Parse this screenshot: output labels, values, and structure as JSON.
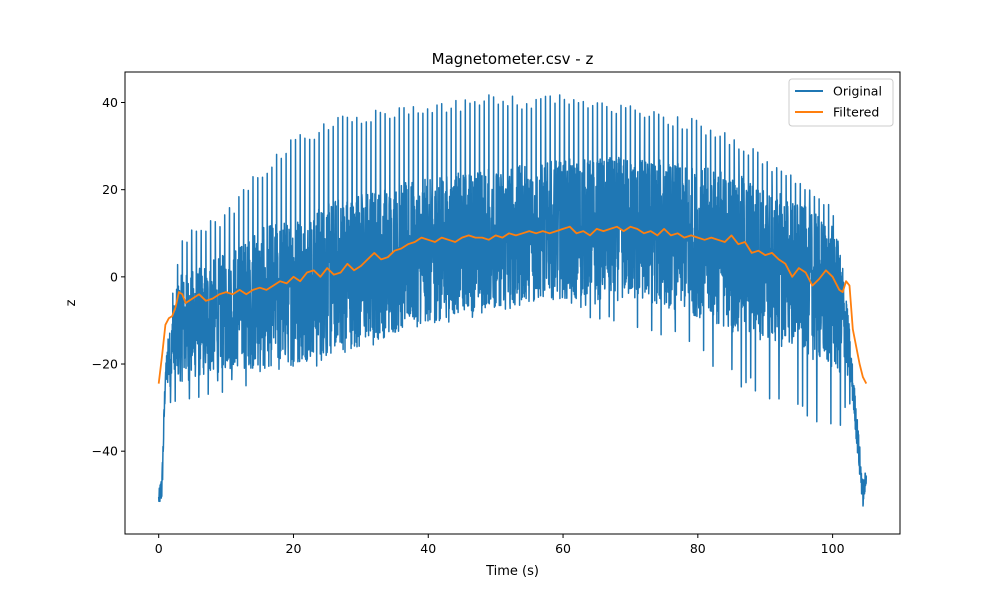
{
  "chart_data": {
    "type": "line",
    "title": "Magnetometer.csv - z",
    "xlabel": "Time (s)",
    "ylabel": "z",
    "xlim": [
      -5,
      110
    ],
    "ylim": [
      -59,
      47
    ],
    "xticks": [
      0,
      20,
      40,
      60,
      80,
      100
    ],
    "yticks": [
      -40,
      -20,
      0,
      20,
      40
    ],
    "ytick_labels": [
      "−40",
      "−20",
      "0",
      "20",
      "40"
    ],
    "grid": false,
    "legend_position": "top-right",
    "series": [
      {
        "name": "Original",
        "color": "#1f77b4",
        "envelope": {
          "x": [
            0,
            0.5,
            1,
            2,
            3,
            5,
            10,
            15,
            20,
            25,
            30,
            35,
            40,
            45,
            50,
            55,
            60,
            65,
            70,
            75,
            80,
            85,
            90,
            95,
            100,
            101,
            102,
            103,
            104,
            104.5,
            105
          ],
          "upper": [
            -49,
            -40,
            -20,
            -5,
            8,
            12,
            15,
            25,
            32,
            36,
            38,
            39,
            40,
            41,
            42,
            41,
            42,
            41,
            40,
            38,
            36,
            33,
            28,
            22,
            16,
            8,
            0,
            -22,
            -35,
            -45,
            -43
          ],
          "lower": [
            -54,
            -52,
            -30,
            -32,
            -30,
            -28,
            -27,
            -25,
            -22,
            -20,
            -18,
            -15,
            -12,
            -10,
            -9,
            -8,
            -8,
            -10,
            -12,
            -15,
            -18,
            -25,
            -28,
            -32,
            -36,
            -38,
            -30,
            -35,
            -47,
            -54,
            -50
          ],
          "center": [
            -51,
            -48,
            -22,
            -17,
            -12,
            -11,
            -8,
            -5,
            -3,
            0,
            2,
            4,
            6,
            8,
            9,
            10,
            11,
            11,
            11,
            10,
            8,
            6,
            3,
            0,
            -5,
            -8,
            -12,
            -25,
            -42,
            -50,
            -46
          ],
          "low_spikes": [
            -35,
            -36,
            -25,
            -23,
            -20,
            -17,
            -14,
            -13,
            -12,
            -11,
            -14,
            -16,
            -20,
            -24,
            -28,
            -33,
            -35,
            -30,
            -38
          ]
        }
      },
      {
        "name": "Filtered",
        "color": "#ff7f0e",
        "x": [
          0,
          0.5,
          1,
          1.5,
          2,
          2.5,
          3,
          3.5,
          4,
          5,
          6,
          7,
          8,
          9,
          10,
          11,
          12,
          13,
          14,
          15,
          16,
          17,
          18,
          19,
          20,
          21,
          22,
          23,
          24,
          25,
          26,
          27,
          28,
          29,
          30,
          31,
          32,
          33,
          34,
          35,
          36,
          37,
          38,
          39,
          40,
          41,
          42,
          43,
          44,
          45,
          46,
          47,
          48,
          49,
          50,
          51,
          52,
          53,
          54,
          55,
          56,
          57,
          58,
          59,
          60,
          61,
          62,
          63,
          64,
          65,
          66,
          67,
          68,
          69,
          70,
          71,
          72,
          73,
          74,
          75,
          76,
          77,
          78,
          79,
          80,
          81,
          82,
          83,
          84,
          85,
          86,
          87,
          88,
          89,
          90,
          91,
          92,
          93,
          94,
          95,
          96,
          97,
          98,
          99,
          100,
          101,
          101.5,
          102,
          102.5,
          103,
          103.5,
          104,
          104.5,
          105
        ],
        "values": [
          -24.5,
          -18,
          -11,
          -9.5,
          -9,
          -7,
          -3.5,
          -4,
          -6,
          -5,
          -4,
          -5.5,
          -5,
          -4,
          -3.5,
          -4,
          -3,
          -4,
          -3,
          -2.5,
          -3,
          -2,
          -1,
          -1.5,
          0,
          -1,
          1,
          1.5,
          0,
          2,
          0.5,
          1,
          3,
          1.5,
          2.5,
          4,
          5.5,
          4,
          4.5,
          6,
          6.5,
          7.5,
          8,
          9,
          8.5,
          8,
          9,
          8.5,
          8,
          9,
          9.5,
          9,
          9,
          8.5,
          9.5,
          9,
          10,
          9.5,
          10,
          10.5,
          10,
          10.5,
          10,
          10.5,
          11,
          11.5,
          10,
          10.5,
          9.5,
          11,
          10.5,
          11,
          11.5,
          10.5,
          11.5,
          11,
          10,
          10.5,
          9.5,
          11,
          9.5,
          10,
          9,
          9.5,
          9,
          8.5,
          9,
          8.5,
          8,
          9.5,
          7.5,
          8,
          5.5,
          6,
          5,
          5.5,
          4,
          3,
          0,
          2,
          1,
          -2,
          -0.5,
          1.5,
          0,
          -3,
          -3.5,
          -1,
          -2,
          -12,
          -16,
          -20,
          -23,
          -24.5
        ]
      }
    ]
  }
}
